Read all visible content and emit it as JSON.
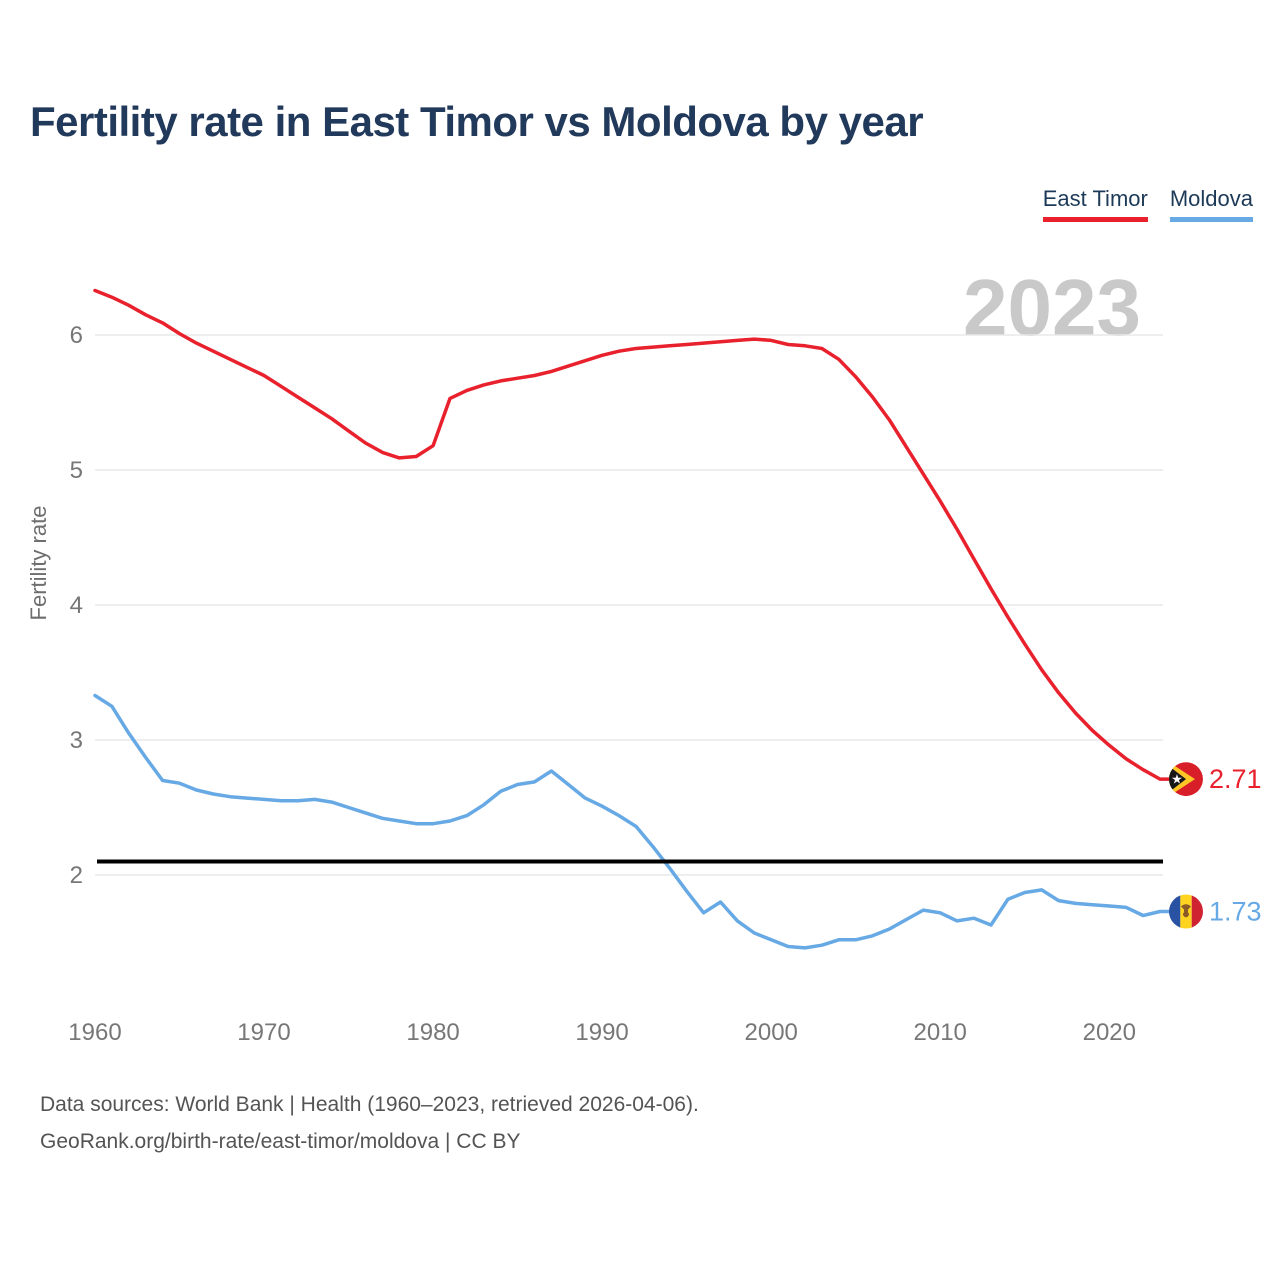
{
  "header": {
    "title": "Fertility rate in East Timor vs Moldova by year"
  },
  "legend": [
    {
      "label": "East Timor",
      "color": "#e8212d"
    },
    {
      "label": "Moldova",
      "color": "#66a9e4"
    }
  ],
  "watermark": "2023",
  "chart_data": {
    "type": "line",
    "title": "Fertility rate in East Timor vs Moldova by year",
    "xlabel": "",
    "ylabel": "Fertility rate",
    "xlim": [
      1960,
      2023
    ],
    "ylim": [
      1.3,
      6.5
    ],
    "x_ticks": [
      1960,
      1970,
      1980,
      1990,
      2000,
      2010,
      2020
    ],
    "y_ticks": [
      2,
      3,
      4,
      5,
      6
    ],
    "grid": true,
    "legend_position": "top-right",
    "reference_line": {
      "value": 2.1,
      "color": "#000000"
    },
    "x": [
      1960,
      1961,
      1962,
      1963,
      1964,
      1965,
      1966,
      1967,
      1968,
      1969,
      1970,
      1971,
      1972,
      1973,
      1974,
      1975,
      1976,
      1977,
      1978,
      1979,
      1980,
      1981,
      1982,
      1983,
      1984,
      1985,
      1986,
      1987,
      1988,
      1989,
      1990,
      1991,
      1992,
      1993,
      1994,
      1995,
      1996,
      1997,
      1998,
      1999,
      2000,
      2001,
      2002,
      2003,
      2004,
      2005,
      2006,
      2007,
      2008,
      2009,
      2010,
      2011,
      2012,
      2013,
      2014,
      2015,
      2016,
      2017,
      2018,
      2019,
      2020,
      2021,
      2022,
      2023
    ],
    "series": [
      {
        "name": "East Timor",
        "color": "#e8212d",
        "end_label": "2.71",
        "end_value": 2.71,
        "values": [
          6.33,
          6.28,
          6.22,
          6.15,
          6.09,
          6.01,
          5.94,
          5.88,
          5.82,
          5.76,
          5.7,
          5.62,
          5.54,
          5.46,
          5.38,
          5.29,
          5.2,
          5.13,
          5.09,
          5.1,
          5.18,
          5.53,
          5.59,
          5.63,
          5.66,
          5.68,
          5.7,
          5.73,
          5.77,
          5.81,
          5.85,
          5.88,
          5.9,
          5.91,
          5.92,
          5.93,
          5.94,
          5.95,
          5.96,
          5.97,
          5.96,
          5.93,
          5.92,
          5.9,
          5.82,
          5.69,
          5.54,
          5.37,
          5.17,
          4.97,
          4.77,
          4.56,
          4.34,
          4.12,
          3.91,
          3.71,
          3.52,
          3.35,
          3.2,
          3.07,
          2.96,
          2.86,
          2.78,
          2.71
        ]
      },
      {
        "name": "Moldova",
        "color": "#66a9e4",
        "end_label": "1.73",
        "end_value": 1.73,
        "values": [
          3.33,
          3.25,
          3.05,
          2.87,
          2.7,
          2.68,
          2.63,
          2.6,
          2.58,
          2.57,
          2.56,
          2.55,
          2.55,
          2.56,
          2.54,
          2.5,
          2.46,
          2.42,
          2.4,
          2.38,
          2.38,
          2.4,
          2.44,
          2.52,
          2.62,
          2.67,
          2.69,
          2.77,
          2.67,
          2.57,
          2.51,
          2.44,
          2.36,
          2.21,
          2.05,
          1.88,
          1.72,
          1.8,
          1.66,
          1.57,
          1.52,
          1.47,
          1.46,
          1.48,
          1.52,
          1.52,
          1.55,
          1.6,
          1.67,
          1.74,
          1.72,
          1.66,
          1.68,
          1.63,
          1.82,
          1.87,
          1.89,
          1.81,
          1.79,
          1.78,
          1.77,
          1.76,
          1.7,
          1.73
        ]
      }
    ]
  },
  "footer": {
    "line1": "Data sources: World Bank | Health (1960–2023, retrieved 2026-04-06).",
    "line2": "GeoRank.org/birth-rate/east-timor/moldova | CC BY"
  }
}
